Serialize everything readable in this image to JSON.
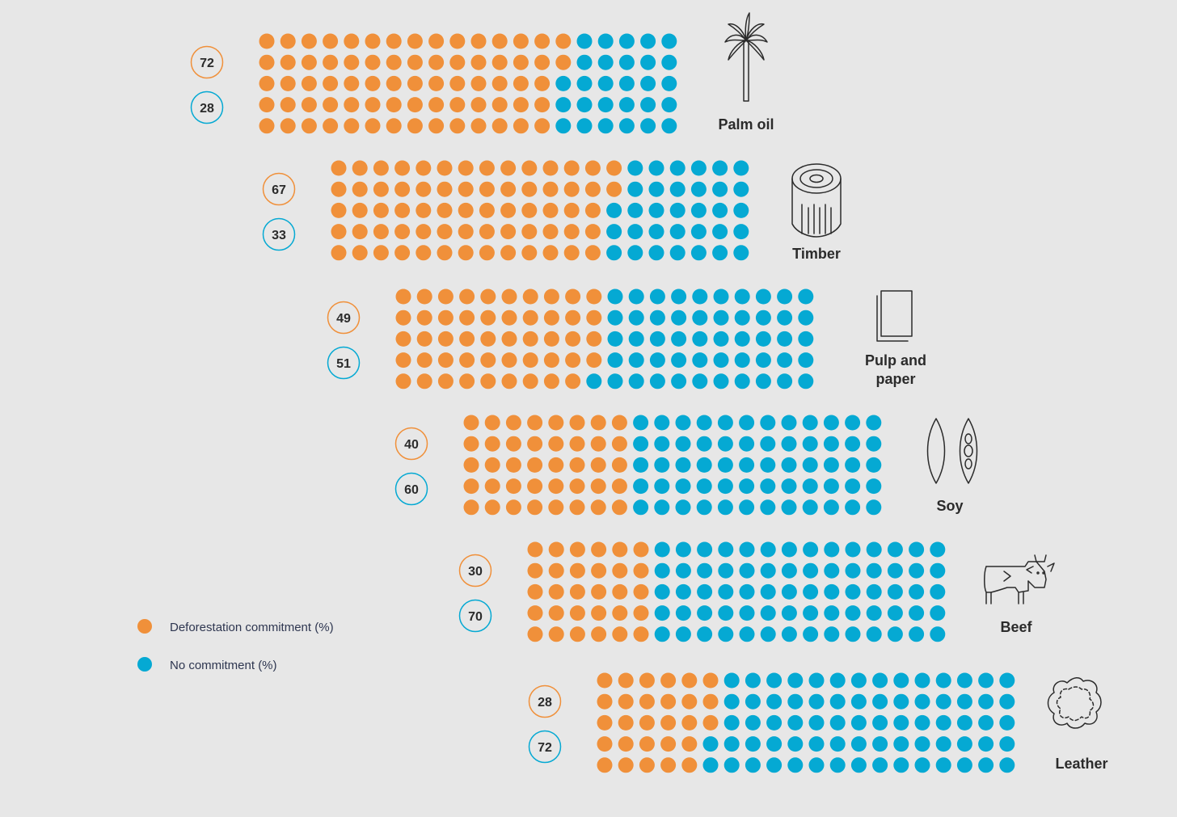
{
  "chart_data": {
    "type": "waffle",
    "title": "",
    "grid": {
      "rows": 5,
      "cols": 20
    },
    "series": [
      {
        "name": "Deforestation commitment (%)",
        "color": "#f0903a"
      },
      {
        "name": "No commitment (%)",
        "color": "#05a9d3"
      }
    ],
    "categories": [
      {
        "label_lines": [
          "Palm oil"
        ],
        "commitment": 72,
        "no_commitment": 28,
        "icon": "palm-tree-icon"
      },
      {
        "label_lines": [
          "Timber"
        ],
        "commitment": 67,
        "no_commitment": 33,
        "icon": "log-icon"
      },
      {
        "label_lines": [
          "Pulp and",
          "paper"
        ],
        "commitment": 49,
        "no_commitment": 51,
        "icon": "paper-stack-icon"
      },
      {
        "label_lines": [
          "Soy"
        ],
        "commitment": 40,
        "no_commitment": 60,
        "icon": "soy-bean-icon"
      },
      {
        "label_lines": [
          "Beef"
        ],
        "commitment": 30,
        "no_commitment": 70,
        "icon": "cow-icon"
      },
      {
        "label_lines": [
          "Leather"
        ],
        "commitment": 28,
        "no_commitment": 72,
        "icon": "hide-icon"
      }
    ],
    "legend": {
      "position": "bottom-left",
      "items": [
        {
          "label": "Deforestation commitment (%)",
          "color": "#f0903a"
        },
        {
          "label": "No commitment (%)",
          "color": "#05a9d3"
        }
      ]
    }
  }
}
